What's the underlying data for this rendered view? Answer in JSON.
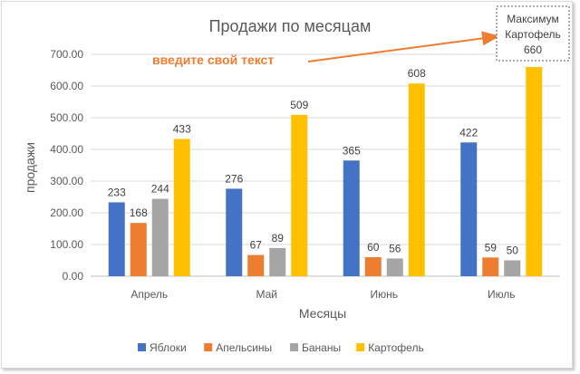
{
  "chart_data": {
    "type": "bar",
    "title": "Продажи по месяцам",
    "xlabel": "Месяцы",
    "ylabel": "продажи",
    "categories": [
      "Апрель",
      "Май",
      "Июнь",
      "Июль"
    ],
    "series": [
      {
        "name": "Яблоки",
        "color": "#4472c4",
        "values": [
          233,
          276,
          365,
          422
        ]
      },
      {
        "name": "Апельсины",
        "color": "#ed7d31",
        "values": [
          168,
          67,
          60,
          59
        ]
      },
      {
        "name": "Бананы",
        "color": "#a5a5a5",
        "values": [
          244,
          89,
          56,
          50
        ]
      },
      {
        "name": "Картофель",
        "color": "#ffc000",
        "values": [
          433,
          509,
          608,
          660
        ]
      }
    ],
    "ylim": [
      0,
      700
    ],
    "yticks": [
      "0.00",
      "100.00",
      "200.00",
      "300.00",
      "400.00",
      "500.00",
      "600.00",
      "700.00"
    ],
    "grid": true,
    "legend_position": "bottom",
    "annotations": {
      "callout_text": "введите свой текст",
      "callout_color": "#ed7d31",
      "max_box_lines": [
        "Максимум",
        "Картофель",
        "660"
      ]
    }
  }
}
